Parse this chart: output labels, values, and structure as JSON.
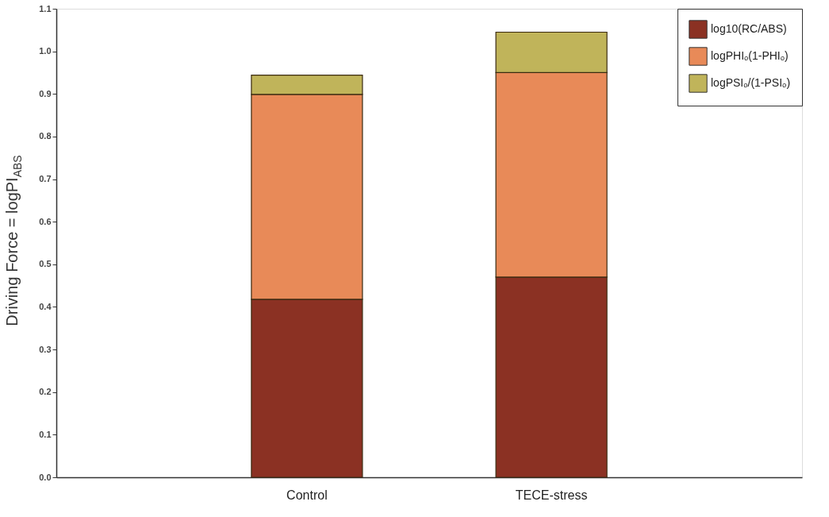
{
  "chart_data": {
    "type": "bar",
    "stacked": true,
    "ylabel": "Driving Force = logPI$_{ABS}$",
    "categories": [
      "Control",
      "TECE-stress"
    ],
    "series": [
      {
        "name": "log10(RC/ABS)",
        "color": "#8b3123",
        "values": [
          0.418,
          0.47
        ]
      },
      {
        "name": "logPHIₒ(1-PHIₒ)",
        "color": "#e88a58",
        "values": [
          0.481,
          0.48
        ]
      },
      {
        "name": "logPSIₒ/(1-PSIₒ)",
        "color": "#c0b45a",
        "values": [
          0.045,
          0.095
        ]
      }
    ],
    "ylim": [
      0,
      1.1
    ],
    "yticks": [
      {
        "value": 0,
        "label": "0.0"
      },
      0.1,
      0.2,
      0.3,
      0.4,
      0.5,
      0.6,
      0.7,
      0.8,
      0.9,
      {
        "value": 1,
        "label": "1.0"
      },
      1.1
    ],
    "grid": false,
    "legend": "top right"
  }
}
